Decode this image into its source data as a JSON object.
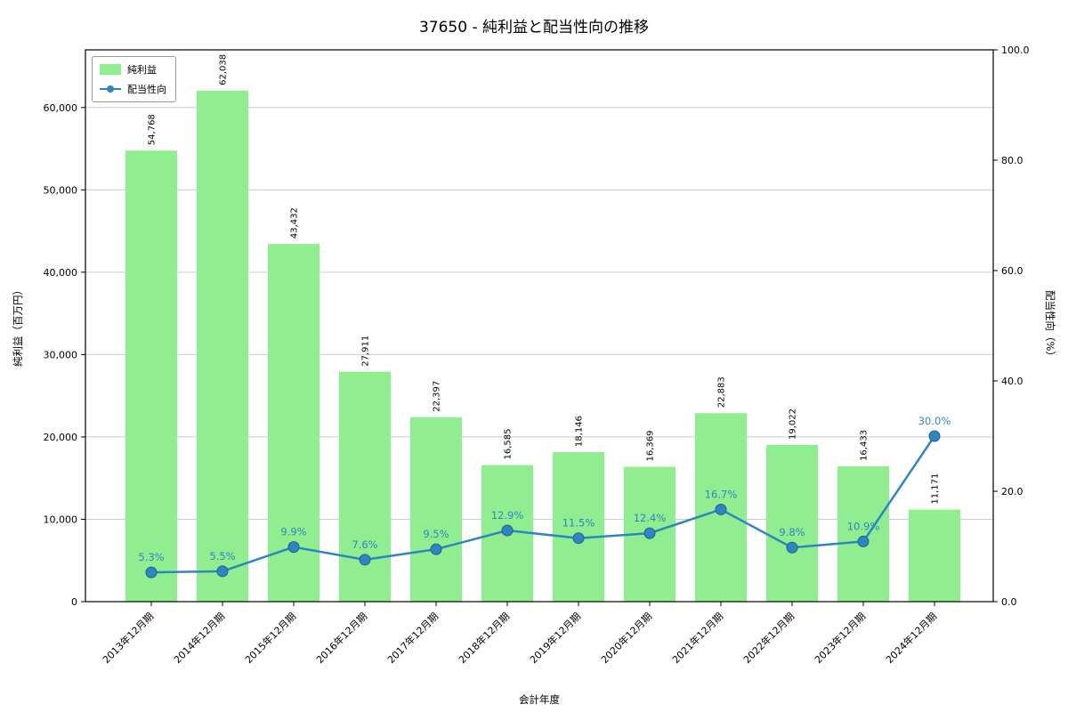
{
  "chart_data": {
    "type": "bar+line",
    "title": "37650 - 純利益と配当性向の推移",
    "xlabel": "会計年度",
    "ylabel_left": "純利益（百万円）",
    "ylabel_right": "配当性向（%）",
    "categories": [
      "2013年12月期",
      "2014年12月期",
      "2015年12月期",
      "2016年12月期",
      "2017年12月期",
      "2018年12月期",
      "2019年12月期",
      "2020年12月期",
      "2021年12月期",
      "2022年12月期",
      "2023年12月期",
      "2024年12月期"
    ],
    "series": [
      {
        "name": "純利益",
        "type": "bar",
        "color": "#90EE90",
        "values": [
          54768,
          62038,
          43432,
          27911,
          22397,
          16585,
          18146,
          16369,
          22883,
          19022,
          16433,
          11171
        ],
        "labels": [
          "54,768",
          "62,038",
          "43,432",
          "27,911",
          "22,397",
          "16,585",
          "18,146",
          "16,369",
          "22,883",
          "19,022",
          "16,433",
          "11,171"
        ]
      },
      {
        "name": "配当性向",
        "type": "line",
        "color": "#2E86C1",
        "values": [
          5.3,
          5.5,
          9.9,
          7.6,
          9.5,
          12.9,
          11.5,
          12.4,
          16.7,
          9.8,
          10.9,
          30.0
        ],
        "labels": [
          "5.3%",
          "5.5%",
          "9.9%",
          "7.6%",
          "9.5%",
          "12.9%",
          "11.5%",
          "12.4%",
          "16.7%",
          "9.8%",
          "10.9%",
          "30.0%"
        ]
      }
    ],
    "left_axis": {
      "min": 0,
      "max": 67000,
      "ticks": [
        0,
        10000,
        20000,
        30000,
        40000,
        50000,
        60000
      ],
      "tick_labels": [
        "0",
        "10,000",
        "20,000",
        "30,000",
        "40,000",
        "50,000",
        "60,000"
      ]
    },
    "right_axis": {
      "min": 0,
      "max": 100,
      "ticks": [
        0,
        20,
        40,
        60,
        80,
        100
      ],
      "tick_labels": [
        "0.0",
        "20.0",
        "40.0",
        "60.0",
        "80.0",
        "100.0"
      ]
    },
    "legend": [
      "純利益",
      "配当性向"
    ],
    "grid": "horizontal",
    "legend_position": "upper-left"
  }
}
